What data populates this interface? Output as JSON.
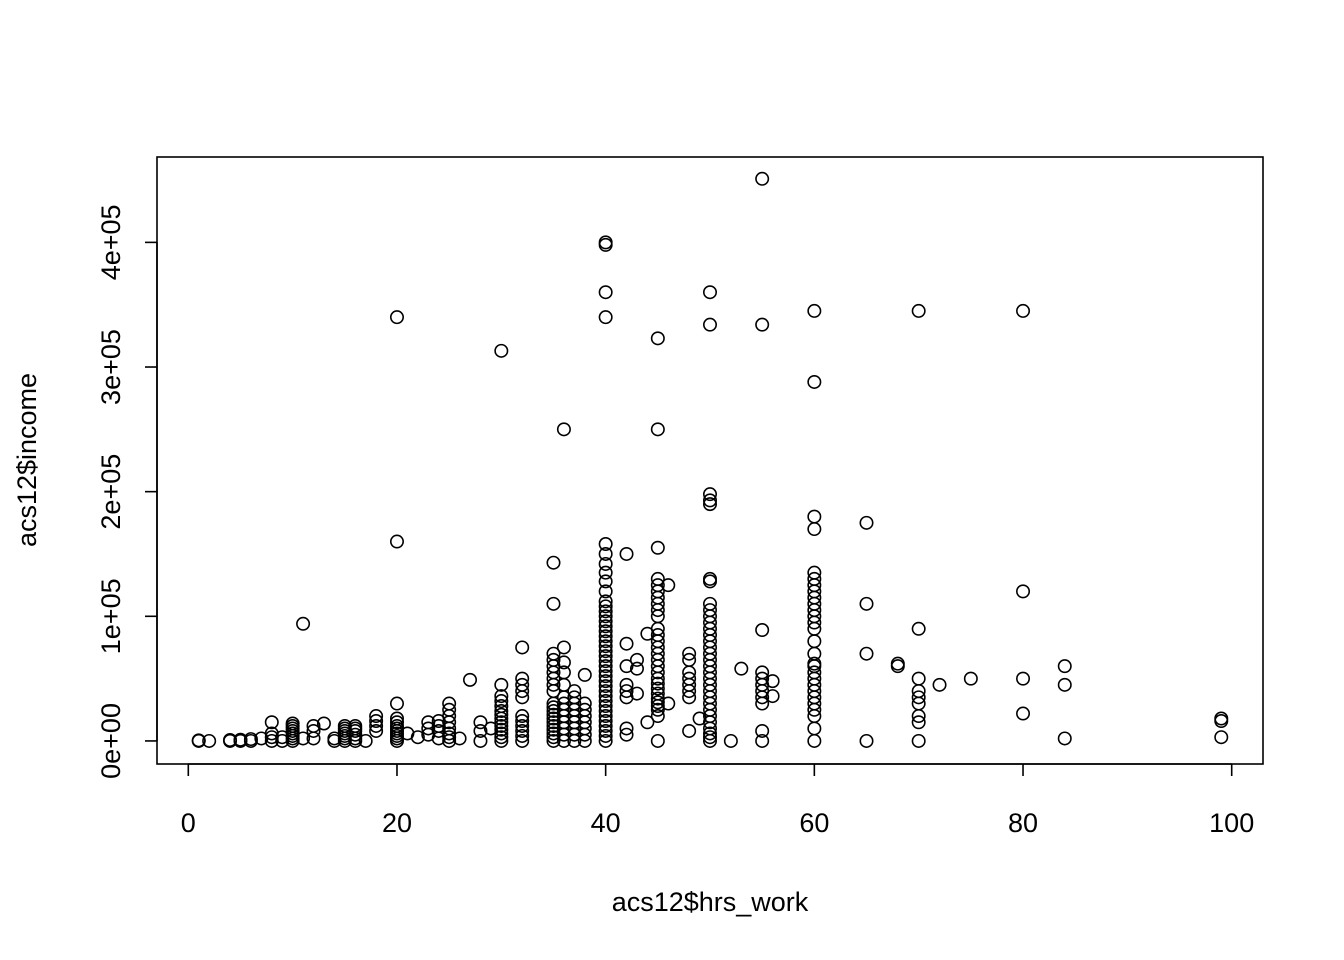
{
  "chart_data": {
    "type": "scatter",
    "title": "",
    "xlabel": "acs12$hrs_work",
    "ylabel": "acs12$income",
    "xlim": [
      -3,
      103
    ],
    "ylim": [
      -18500,
      468500
    ],
    "x_ticks": [
      0,
      20,
      40,
      60,
      80,
      100
    ],
    "x_tick_labels": [
      "0",
      "20",
      "40",
      "60",
      "80",
      "100"
    ],
    "y_ticks": [
      0,
      100000,
      200000,
      300000,
      400000
    ],
    "y_tick_labels": [
      "0e+00",
      "1e+05",
      "2e+05",
      "3e+05",
      "4e+05"
    ],
    "marker": "open-circle",
    "marker_color": "#000000",
    "points": [
      [
        1,
        0
      ],
      [
        1,
        500
      ],
      [
        2,
        0
      ],
      [
        4,
        0
      ],
      [
        4,
        800
      ],
      [
        5,
        0
      ],
      [
        5,
        1000
      ],
      [
        6,
        0
      ],
      [
        6,
        1500
      ],
      [
        7,
        2000
      ],
      [
        8,
        0
      ],
      [
        8,
        3000
      ],
      [
        8,
        6000
      ],
      [
        8,
        15000
      ],
      [
        9,
        0
      ],
      [
        9,
        3000
      ],
      [
        10,
        0
      ],
      [
        10,
        2000
      ],
      [
        10,
        4000
      ],
      [
        10,
        6000
      ],
      [
        10,
        8000
      ],
      [
        10,
        10000
      ],
      [
        10,
        12000
      ],
      [
        10,
        14000
      ],
      [
        11,
        2000
      ],
      [
        11,
        94000
      ],
      [
        12,
        2000
      ],
      [
        12,
        8000
      ],
      [
        12,
        12000
      ],
      [
        13,
        14000
      ],
      [
        14,
        0
      ],
      [
        14,
        2000
      ],
      [
        15,
        0
      ],
      [
        15,
        2000
      ],
      [
        15,
        4000
      ],
      [
        15,
        6000
      ],
      [
        15,
        8000
      ],
      [
        15,
        10000
      ],
      [
        15,
        12000
      ],
      [
        16,
        0
      ],
      [
        16,
        2000
      ],
      [
        16,
        5000
      ],
      [
        16,
        8000
      ],
      [
        16,
        10000
      ],
      [
        16,
        12000
      ],
      [
        17,
        0
      ],
      [
        18,
        8000
      ],
      [
        18,
        12000
      ],
      [
        18,
        16000
      ],
      [
        18,
        20000
      ],
      [
        20,
        0
      ],
      [
        20,
        2000
      ],
      [
        20,
        4000
      ],
      [
        20,
        6000
      ],
      [
        20,
        8000
      ],
      [
        20,
        10000
      ],
      [
        20,
        12000
      ],
      [
        20,
        15000
      ],
      [
        20,
        18000
      ],
      [
        20,
        30000
      ],
      [
        20,
        160000
      ],
      [
        20,
        340000
      ],
      [
        21,
        6000
      ],
      [
        22,
        3000
      ],
      [
        23,
        5000
      ],
      [
        23,
        10000
      ],
      [
        23,
        15000
      ],
      [
        24,
        2000
      ],
      [
        24,
        8000
      ],
      [
        24,
        12000
      ],
      [
        24,
        16000
      ],
      [
        25,
        0
      ],
      [
        25,
        3000
      ],
      [
        25,
        6000
      ],
      [
        25,
        10000
      ],
      [
        25,
        15000
      ],
      [
        25,
        20000
      ],
      [
        25,
        25000
      ],
      [
        25,
        30000
      ],
      [
        26,
        2000
      ],
      [
        27,
        49000
      ],
      [
        28,
        0
      ],
      [
        28,
        8000
      ],
      [
        28,
        15000
      ],
      [
        29,
        10000
      ],
      [
        30,
        0
      ],
      [
        30,
        3000
      ],
      [
        30,
        6000
      ],
      [
        30,
        9000
      ],
      [
        30,
        12000
      ],
      [
        30,
        15000
      ],
      [
        30,
        18000
      ],
      [
        30,
        21000
      ],
      [
        30,
        24000
      ],
      [
        30,
        28000
      ],
      [
        30,
        32000
      ],
      [
        30,
        36000
      ],
      [
        30,
        45000
      ],
      [
        30,
        313000
      ],
      [
        32,
        0
      ],
      [
        32,
        4000
      ],
      [
        32,
        8000
      ],
      [
        32,
        12000
      ],
      [
        32,
        16000
      ],
      [
        32,
        20000
      ],
      [
        32,
        35000
      ],
      [
        32,
        40000
      ],
      [
        32,
        45000
      ],
      [
        32,
        50000
      ],
      [
        32,
        75000
      ],
      [
        35,
        0
      ],
      [
        35,
        3000
      ],
      [
        35,
        6000
      ],
      [
        35,
        9000
      ],
      [
        35,
        12000
      ],
      [
        35,
        15000
      ],
      [
        35,
        18000
      ],
      [
        35,
        21000
      ],
      [
        35,
        24000
      ],
      [
        35,
        27000
      ],
      [
        35,
        30000
      ],
      [
        35,
        40000
      ],
      [
        35,
        45000
      ],
      [
        35,
        50000
      ],
      [
        35,
        55000
      ],
      [
        35,
        60000
      ],
      [
        35,
        65000
      ],
      [
        35,
        70000
      ],
      [
        35,
        110000
      ],
      [
        35,
        143000
      ],
      [
        36,
        0
      ],
      [
        36,
        5000
      ],
      [
        36,
        10000
      ],
      [
        36,
        15000
      ],
      [
        36,
        20000
      ],
      [
        36,
        25000
      ],
      [
        36,
        30000
      ],
      [
        36,
        35000
      ],
      [
        36,
        45000
      ],
      [
        36,
        55000
      ],
      [
        36,
        63000
      ],
      [
        36,
        75000
      ],
      [
        36,
        250000
      ],
      [
        37,
        0
      ],
      [
        37,
        5000
      ],
      [
        37,
        10000
      ],
      [
        37,
        15000
      ],
      [
        37,
        20000
      ],
      [
        37,
        25000
      ],
      [
        37,
        30000
      ],
      [
        37,
        35000
      ],
      [
        37,
        40000
      ],
      [
        38,
        0
      ],
      [
        38,
        5000
      ],
      [
        38,
        10000
      ],
      [
        38,
        15000
      ],
      [
        38,
        20000
      ],
      [
        38,
        25000
      ],
      [
        38,
        30000
      ],
      [
        38,
        53000
      ],
      [
        40,
        0
      ],
      [
        40,
        4000
      ],
      [
        40,
        8000
      ],
      [
        40,
        12000
      ],
      [
        40,
        16000
      ],
      [
        40,
        20000
      ],
      [
        40,
        24000
      ],
      [
        40,
        28000
      ],
      [
        40,
        32000
      ],
      [
        40,
        36000
      ],
      [
        40,
        40000
      ],
      [
        40,
        44000
      ],
      [
        40,
        48000
      ],
      [
        40,
        52000
      ],
      [
        40,
        56000
      ],
      [
        40,
        60000
      ],
      [
        40,
        64000
      ],
      [
        40,
        68000
      ],
      [
        40,
        72000
      ],
      [
        40,
        76000
      ],
      [
        40,
        80000
      ],
      [
        40,
        84000
      ],
      [
        40,
        88000
      ],
      [
        40,
        92000
      ],
      [
        40,
        96000
      ],
      [
        40,
        100000
      ],
      [
        40,
        104000
      ],
      [
        40,
        108000
      ],
      [
        40,
        112000
      ],
      [
        40,
        120000
      ],
      [
        40,
        128000
      ],
      [
        40,
        135000
      ],
      [
        40,
        142000
      ],
      [
        40,
        150000
      ],
      [
        40,
        158000
      ],
      [
        40,
        340000
      ],
      [
        40,
        360000
      ],
      [
        40,
        398000
      ],
      [
        40,
        400000
      ],
      [
        42,
        5000
      ],
      [
        42,
        10000
      ],
      [
        42,
        35000
      ],
      [
        42,
        40000
      ],
      [
        42,
        45000
      ],
      [
        42,
        60000
      ],
      [
        42,
        78000
      ],
      [
        42,
        150000
      ],
      [
        43,
        38000
      ],
      [
        43,
        58000
      ],
      [
        43,
        65000
      ],
      [
        44,
        15000
      ],
      [
        44,
        86000
      ],
      [
        45,
        0
      ],
      [
        45,
        20000
      ],
      [
        45,
        25000
      ],
      [
        45,
        28000
      ],
      [
        45,
        31000
      ],
      [
        45,
        34000
      ],
      [
        45,
        38000
      ],
      [
        45,
        42000
      ],
      [
        45,
        46000
      ],
      [
        45,
        50000
      ],
      [
        45,
        55000
      ],
      [
        45,
        60000
      ],
      [
        45,
        65000
      ],
      [
        45,
        70000
      ],
      [
        45,
        75000
      ],
      [
        45,
        80000
      ],
      [
        45,
        85000
      ],
      [
        45,
        90000
      ],
      [
        45,
        100000
      ],
      [
        45,
        105000
      ],
      [
        45,
        110000
      ],
      [
        45,
        115000
      ],
      [
        45,
        120000
      ],
      [
        45,
        125000
      ],
      [
        45,
        130000
      ],
      [
        45,
        155000
      ],
      [
        45,
        250000
      ],
      [
        45,
        323000
      ],
      [
        46,
        30000
      ],
      [
        46,
        125000
      ],
      [
        48,
        8000
      ],
      [
        48,
        35000
      ],
      [
        48,
        40000
      ],
      [
        48,
        45000
      ],
      [
        48,
        50000
      ],
      [
        48,
        55000
      ],
      [
        48,
        65000
      ],
      [
        48,
        70000
      ],
      [
        49,
        18000
      ],
      [
        50,
        0
      ],
      [
        50,
        3000
      ],
      [
        50,
        6000
      ],
      [
        50,
        10000
      ],
      [
        50,
        15000
      ],
      [
        50,
        20000
      ],
      [
        50,
        25000
      ],
      [
        50,
        30000
      ],
      [
        50,
        35000
      ],
      [
        50,
        40000
      ],
      [
        50,
        45000
      ],
      [
        50,
        50000
      ],
      [
        50,
        55000
      ],
      [
        50,
        60000
      ],
      [
        50,
        65000
      ],
      [
        50,
        70000
      ],
      [
        50,
        75000
      ],
      [
        50,
        80000
      ],
      [
        50,
        85000
      ],
      [
        50,
        90000
      ],
      [
        50,
        95000
      ],
      [
        50,
        100000
      ],
      [
        50,
        105000
      ],
      [
        50,
        110000
      ],
      [
        50,
        128000
      ],
      [
        50,
        130000
      ],
      [
        50,
        190000
      ],
      [
        50,
        193000
      ],
      [
        50,
        198000
      ],
      [
        50,
        334000
      ],
      [
        50,
        360000
      ],
      [
        52,
        0
      ],
      [
        53,
        58000
      ],
      [
        55,
        0
      ],
      [
        55,
        8000
      ],
      [
        55,
        30000
      ],
      [
        55,
        35000
      ],
      [
        55,
        40000
      ],
      [
        55,
        45000
      ],
      [
        55,
        50000
      ],
      [
        55,
        55000
      ],
      [
        55,
        89000
      ],
      [
        55,
        334000
      ],
      [
        55,
        451000
      ],
      [
        56,
        36000
      ],
      [
        56,
        48000
      ],
      [
        60,
        0
      ],
      [
        60,
        10000
      ],
      [
        60,
        20000
      ],
      [
        60,
        25000
      ],
      [
        60,
        30000
      ],
      [
        60,
        35000
      ],
      [
        60,
        40000
      ],
      [
        60,
        45000
      ],
      [
        60,
        50000
      ],
      [
        60,
        55000
      ],
      [
        60,
        60000
      ],
      [
        60,
        62000
      ],
      [
        60,
        70000
      ],
      [
        60,
        80000
      ],
      [
        60,
        90000
      ],
      [
        60,
        95000
      ],
      [
        60,
        100000
      ],
      [
        60,
        105000
      ],
      [
        60,
        110000
      ],
      [
        60,
        115000
      ],
      [
        60,
        120000
      ],
      [
        60,
        125000
      ],
      [
        60,
        130000
      ],
      [
        60,
        135000
      ],
      [
        60,
        170000
      ],
      [
        60,
        180000
      ],
      [
        60,
        288000
      ],
      [
        60,
        345000
      ],
      [
        65,
        0
      ],
      [
        65,
        70000
      ],
      [
        65,
        110000
      ],
      [
        65,
        175000
      ],
      [
        68,
        60000
      ],
      [
        68,
        62000
      ],
      [
        70,
        0
      ],
      [
        70,
        15000
      ],
      [
        70,
        20000
      ],
      [
        70,
        30000
      ],
      [
        70,
        35000
      ],
      [
        70,
        40000
      ],
      [
        70,
        50000
      ],
      [
        70,
        90000
      ],
      [
        70,
        345000
      ],
      [
        72,
        45000
      ],
      [
        75,
        50000
      ],
      [
        80,
        22000
      ],
      [
        80,
        50000
      ],
      [
        80,
        120000
      ],
      [
        80,
        345000
      ],
      [
        84,
        2000
      ],
      [
        84,
        45000
      ],
      [
        84,
        60000
      ],
      [
        99,
        3000
      ],
      [
        99,
        16000
      ],
      [
        99,
        18000
      ]
    ]
  }
}
